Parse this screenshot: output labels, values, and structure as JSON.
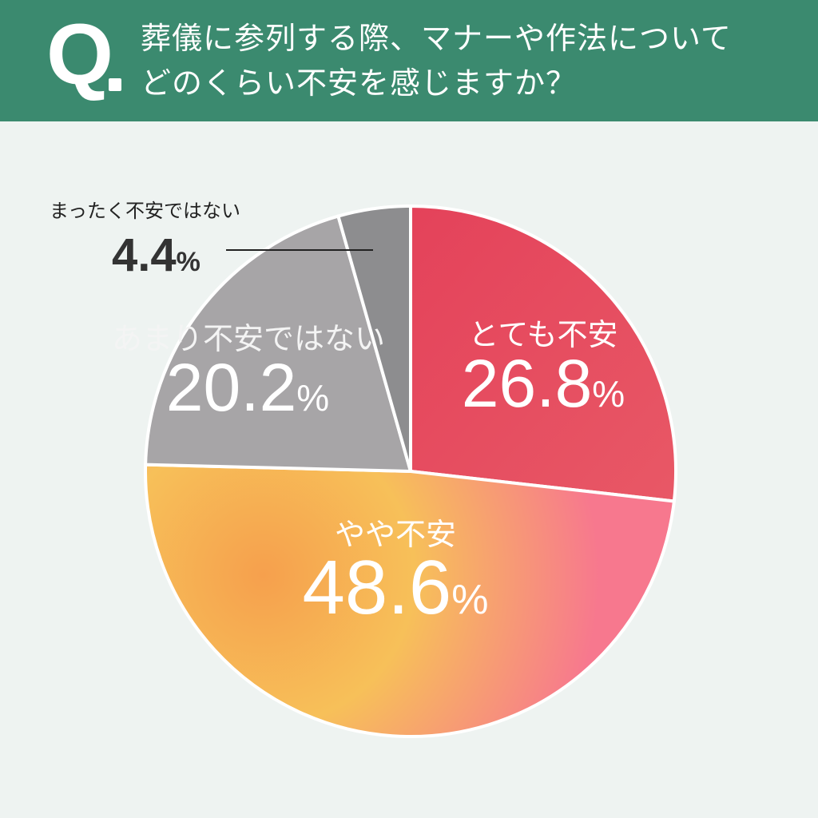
{
  "question": {
    "mark": "Q",
    "line1": "葬儀に参列する際、マナーや作法について",
    "line2": "どのくらい不安を感じますか？"
  },
  "chart_data": {
    "type": "pie",
    "title": "葬儀に参列する際、マナーや作法についてどのくらい不安を感じますか？",
    "unit": "%",
    "start_angle_deg": 0,
    "direction": "clockwise",
    "slices": [
      {
        "label": "とても不安",
        "value": 26.8,
        "value_text": "26.8",
        "color": "#e24a5a"
      },
      {
        "label": "やや不安",
        "value": 48.6,
        "value_text": "48.6",
        "color": "#f7c358",
        "color2": "#f77f92"
      },
      {
        "label": "あまり不安ではない",
        "value": 20.2,
        "value_text": "20.2",
        "color": "#a7a5a7"
      },
      {
        "label": "まったく不安ではない",
        "value": 4.4,
        "value_text": "4.4",
        "color": "#8d8d8f"
      }
    ]
  }
}
